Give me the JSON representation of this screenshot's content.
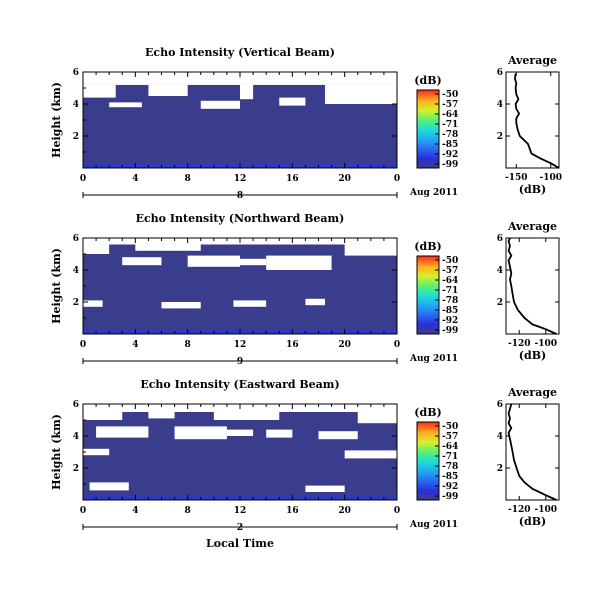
{
  "chart_data": [
    {
      "type": "heatmap",
      "title": "Echo Intensity (Vertical Beam)",
      "ylabel": "Height (km)",
      "x_ticks": [
        "0",
        "4",
        "8",
        "12",
        "16",
        "20",
        "0"
      ],
      "y_ticks": [
        "6",
        "4",
        "2"
      ],
      "xlim": [
        0,
        24
      ],
      "ylim": [
        0,
        6
      ],
      "day_label": "8",
      "date_label": "Aug 2011",
      "colorbar": {
        "unit": "(dB)",
        "ticks": [
          "-50",
          "-57",
          "-64",
          "-71",
          "-78",
          "-85",
          "-92",
          "-99"
        ]
      },
      "fill_top_km": 5.2,
      "gaps": [
        [
          0,
          24,
          5.2,
          6
        ],
        [
          0,
          2.5,
          4.4,
          5.2
        ],
        [
          5,
          8,
          4.5,
          5.2
        ],
        [
          12,
          13,
          4.3,
          5.2
        ],
        [
          18.5,
          24,
          4.0,
          5.2
        ],
        [
          2,
          4.5,
          3.8,
          4.1
        ],
        [
          9,
          12,
          3.7,
          4.2
        ],
        [
          15,
          17,
          3.9,
          4.4
        ]
      ],
      "average": {
        "title": "Average",
        "xlabel": "(dB)",
        "x_ticks": [
          "-150",
          "-100"
        ],
        "y_ticks": [
          "6",
          "4",
          "2"
        ],
        "xlim": [
          -165,
          -88
        ],
        "ylim": [
          0,
          6
        ],
        "x": [
          -88,
          -100,
          -115,
          -128,
          -133,
          -145,
          -148,
          -150,
          -150,
          -146,
          -150,
          -151,
          -147,
          -150,
          -151,
          -150,
          -152,
          -151
        ],
        "y": [
          0,
          0.3,
          0.6,
          0.9,
          1.5,
          2.0,
          2.4,
          2.8,
          3.1,
          3.4,
          3.7,
          4.0,
          4.3,
          4.6,
          5.0,
          5.3,
          5.6,
          5.9
        ]
      }
    },
    {
      "type": "heatmap",
      "title": "Echo Intensity (Northward Beam)",
      "ylabel": "Height (km)",
      "x_ticks": [
        "0",
        "4",
        "8",
        "12",
        "16",
        "20",
        "0"
      ],
      "y_ticks": [
        "6",
        "4",
        "2"
      ],
      "xlim": [
        0,
        24
      ],
      "ylim": [
        0,
        6
      ],
      "day_label": "9",
      "date_label": "Aug 2011",
      "colorbar": {
        "unit": "(dB)",
        "ticks": [
          "-50",
          "-57",
          "-64",
          "-71",
          "-78",
          "-85",
          "-92",
          "-99"
        ]
      },
      "fill_top_km": 5.6,
      "gaps": [
        [
          0,
          24,
          5.6,
          6
        ],
        [
          0,
          2,
          5.0,
          5.6
        ],
        [
          4,
          9,
          5.2,
          5.6
        ],
        [
          20,
          24,
          4.9,
          5.6
        ],
        [
          3,
          6,
          4.3,
          4.8
        ],
        [
          8,
          12,
          4.2,
          4.9
        ],
        [
          14,
          19,
          4.0,
          4.9
        ],
        [
          12,
          14,
          4.3,
          4.7
        ],
        [
          0,
          1.5,
          1.7,
          2.1
        ],
        [
          6,
          9,
          1.6,
          2.0
        ],
        [
          11.5,
          14,
          1.7,
          2.1
        ],
        [
          17,
          18.5,
          1.8,
          2.2
        ]
      ],
      "average": {
        "title": "Average",
        "xlabel": "(dB)",
        "x_ticks": [
          "-120",
          "-100"
        ],
        "y_ticks": [
          "6",
          "4",
          "2"
        ],
        "xlim": [
          -130,
          -90
        ],
        "ylim": [
          0,
          6
        ],
        "x": [
          -92,
          -100,
          -110,
          -116,
          -121,
          -124,
          -125,
          -126,
          -127,
          -126,
          -127,
          -128,
          -126,
          -128,
          -127,
          -128,
          -127
        ],
        "y": [
          0,
          0.3,
          0.6,
          1.0,
          1.5,
          2.0,
          2.5,
          3.0,
          3.4,
          3.8,
          4.2,
          4.6,
          4.9,
          5.2,
          5.5,
          5.8,
          6.0
        ]
      }
    },
    {
      "type": "heatmap",
      "title": "Echo Intensity (Eastward Beam)",
      "ylabel": "Height (km)",
      "x_ticks": [
        "0",
        "4",
        "8",
        "12",
        "16",
        "20",
        "0"
      ],
      "y_ticks": [
        "6",
        "4",
        "2"
      ],
      "xlim": [
        0,
        24
      ],
      "ylim": [
        0,
        6
      ],
      "day_label": "2",
      "date_label": "Aug 2011",
      "xlabel": "Local Time",
      "colorbar": {
        "unit": "(dB)",
        "ticks": [
          "-50",
          "-57",
          "-64",
          "-71",
          "-78",
          "-85",
          "-92",
          "-99"
        ]
      },
      "fill_top_km": 5.5,
      "gaps": [
        [
          0,
          24,
          5.5,
          6
        ],
        [
          0,
          3,
          5.0,
          5.5
        ],
        [
          5,
          7,
          5.1,
          5.5
        ],
        [
          10,
          15,
          5.0,
          5.5
        ],
        [
          21,
          24,
          4.8,
          5.5
        ],
        [
          1,
          5,
          3.9,
          4.6
        ],
        [
          7,
          11,
          3.8,
          4.6
        ],
        [
          11,
          13,
          4.0,
          4.4
        ],
        [
          14,
          16,
          3.9,
          4.4
        ],
        [
          18,
          21,
          3.8,
          4.3
        ],
        [
          0,
          2,
          2.8,
          3.2
        ],
        [
          20,
          24,
          2.6,
          3.1
        ],
        [
          0.5,
          3.5,
          0.6,
          1.1
        ],
        [
          17,
          20,
          0.5,
          0.9
        ]
      ],
      "average": {
        "title": "Average",
        "xlabel": "(dB)",
        "x_ticks": [
          "-120",
          "-100"
        ],
        "y_ticks": [
          "6",
          "4",
          "2"
        ],
        "xlim": [
          -130,
          -90
        ],
        "ylim": [
          0,
          6
        ],
        "x": [
          -92,
          -100,
          -110,
          -116,
          -120,
          -122,
          -124,
          -125,
          -126,
          -127,
          -128,
          -126,
          -128,
          -127,
          -128,
          -127,
          -126
        ],
        "y": [
          0,
          0.3,
          0.7,
          1.1,
          1.5,
          2.0,
          2.5,
          3.0,
          3.4,
          3.8,
          4.2,
          4.5,
          4.8,
          5.1,
          5.4,
          5.7,
          6.0
        ]
      }
    }
  ]
}
